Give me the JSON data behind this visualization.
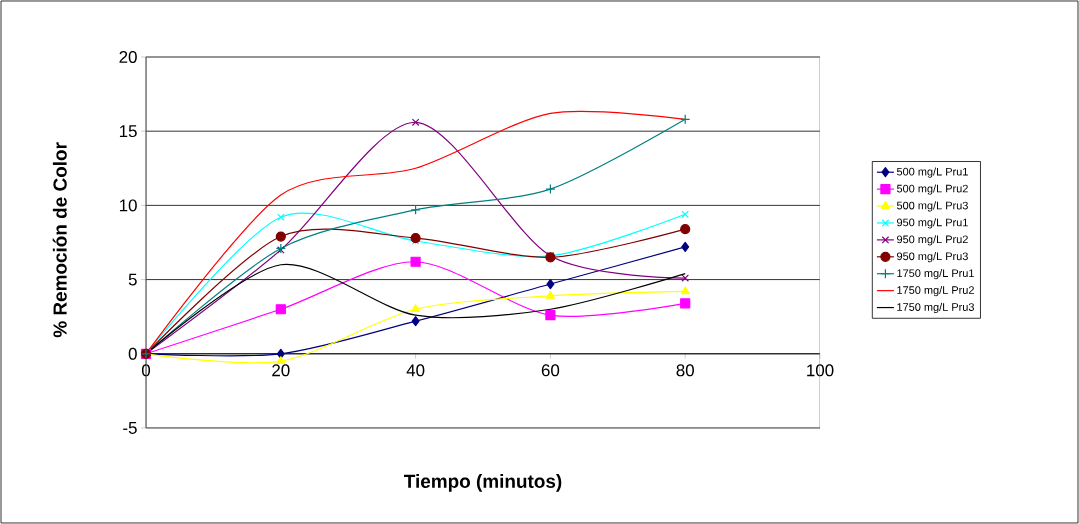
{
  "chart_data": {
    "type": "line",
    "xlabel": "Tiempo (minutos)",
    "ylabel": "% Remoción de Color",
    "x": [
      0,
      20,
      40,
      60,
      80
    ],
    "xlim": [
      0,
      100
    ],
    "xticks": [
      0,
      20,
      40,
      60,
      80,
      100
    ],
    "ylim": [
      -5,
      20
    ],
    "yticks": [
      -5,
      0,
      5,
      10,
      15,
      20
    ],
    "grid": "y",
    "legend": "right",
    "series": [
      {
        "name": "500 mg/L Pru1",
        "color": "#000080",
        "marker": "diamond",
        "values": [
          0,
          0,
          2.2,
          4.7,
          7.2
        ]
      },
      {
        "name": "500 mg/L Pru2",
        "color": "#ff00ff",
        "marker": "square",
        "values": [
          0,
          3.0,
          6.2,
          2.6,
          3.4
        ]
      },
      {
        "name": "500 mg/L Pru3",
        "color": "#ffff00",
        "marker": "triangle",
        "values": [
          0,
          -0.5,
          3.0,
          3.9,
          4.2
        ]
      },
      {
        "name": "950 mg/L Pru1",
        "color": "#00ffff",
        "marker": "cross",
        "values": [
          0,
          9.2,
          7.6,
          6.6,
          9.4
        ]
      },
      {
        "name": "950 mg/L Pru2",
        "color": "#800080",
        "marker": "cross",
        "values": [
          0,
          7.0,
          15.6,
          6.6,
          5.1
        ]
      },
      {
        "name": "950 mg/L Pru3",
        "color": "#800000",
        "marker": "circle",
        "values": [
          0,
          7.9,
          7.8,
          6.5,
          8.4
        ]
      },
      {
        "name": "1750 mg/L Pru1",
        "color": "#008080",
        "marker": "plus",
        "values": [
          0,
          7.1,
          9.7,
          11.1,
          15.8
        ]
      },
      {
        "name": "1750 mg/L Pru2",
        "color": "#ff0000",
        "marker": "none",
        "values": [
          0,
          10.7,
          12.5,
          16.2,
          15.8
        ]
      },
      {
        "name": "1750 mg/L Pru3",
        "color": "#000000",
        "marker": "none",
        "values": [
          0,
          6.0,
          2.6,
          3.0,
          5.4
        ]
      }
    ]
  }
}
